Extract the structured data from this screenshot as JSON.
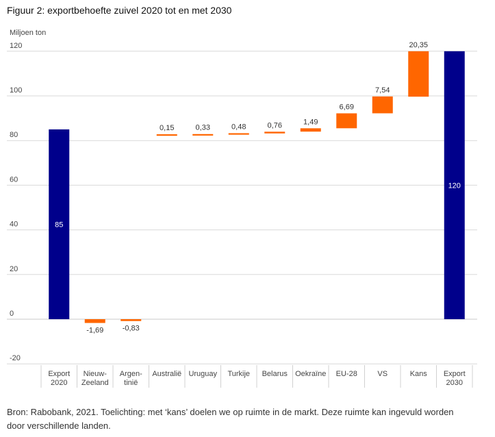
{
  "title": "Figuur 2: exportbehoefte zuivel 2020 tot en met 2030",
  "caption": "Bron: Rabobank, 2021. Toelichting: met ‘kans’ doelen we op ruimte in de markt. Deze ruimte kan ingevuld worden door verschillende landen.",
  "chart_data": {
    "type": "bar",
    "subtype": "waterfall",
    "ylabel": "Miljoen ton",
    "xlabel": "",
    "ylim": [
      -20,
      120
    ],
    "yticks": [
      "120",
      "100",
      "80",
      "60",
      "40",
      "20",
      "0",
      "-20"
    ],
    "grid": true,
    "legend": "none",
    "colors": {
      "total": "#00008b",
      "delta": "#ff6600",
      "grid": "#d9d9d9"
    },
    "categories": [
      [
        "Export",
        "2020"
      ],
      [
        "Nieuw-",
        "Zeeland"
      ],
      [
        "Argen-",
        "tinië"
      ],
      [
        "Australië"
      ],
      [
        "Uruguay"
      ],
      [
        "Turkije"
      ],
      [
        "Belarus"
      ],
      [
        "Oekraïne"
      ],
      [
        "EU-28"
      ],
      [
        "VS"
      ],
      [
        "Kans"
      ],
      [
        "Export",
        "2030"
      ]
    ],
    "bars": [
      {
        "kind": "total",
        "start": 0,
        "end": 85,
        "label": "85"
      },
      {
        "kind": "delta",
        "start": 0,
        "end": -1.69,
        "label": "-1,69"
      },
      {
        "kind": "delta",
        "start": 0,
        "end": -0.83,
        "label": "-0,83"
      },
      {
        "kind": "delta",
        "start": 82.4,
        "end": 82.55,
        "label": "0,15"
      },
      {
        "kind": "delta",
        "start": 82.4,
        "end": 82.73,
        "label": "0,33"
      },
      {
        "kind": "delta",
        "start": 82.72,
        "end": 83.2,
        "label": "0,48"
      },
      {
        "kind": "delta",
        "start": 83.2,
        "end": 83.96,
        "label": "0,76"
      },
      {
        "kind": "delta",
        "start": 84.0,
        "end": 85.49,
        "label": "1,49"
      },
      {
        "kind": "delta",
        "start": 85.5,
        "end": 92.19,
        "label": "6,69"
      },
      {
        "kind": "delta",
        "start": 92.2,
        "end": 99.74,
        "label": "7,54"
      },
      {
        "kind": "delta",
        "start": 99.65,
        "end": 120,
        "label": "20,35"
      },
      {
        "kind": "total",
        "start": 0,
        "end": 120,
        "label": "120"
      }
    ]
  }
}
